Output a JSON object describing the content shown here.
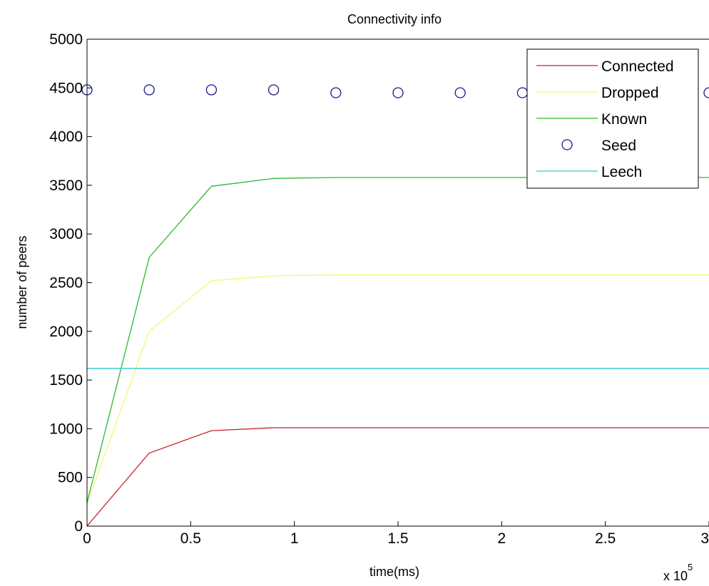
{
  "chart_data": {
    "type": "line",
    "title": "Connectivity info",
    "xlabel": "time(ms)",
    "ylabel": "number of peers",
    "x_multiplier_label": "x 10",
    "x_multiplier_exponent": "5",
    "xlim": [
      0,
      300000
    ],
    "ylim": [
      0,
      5000
    ],
    "xticks": [
      0,
      50000,
      100000,
      150000,
      200000,
      250000,
      300000
    ],
    "xtick_labels": [
      "0",
      "0.5",
      "1",
      "1.5",
      "2",
      "2.5",
      "3"
    ],
    "yticks": [
      0,
      500,
      1000,
      1500,
      2000,
      2500,
      3000,
      3500,
      4000,
      4500,
      5000
    ],
    "ytick_labels": [
      "0",
      "500",
      "1000",
      "1500",
      "2000",
      "2500",
      "3000",
      "3500",
      "4000",
      "4500",
      "5000"
    ],
    "grid": false,
    "legend_position": "top-right",
    "series": [
      {
        "name": "Connected",
        "color": "#c0262a",
        "style": "line",
        "x": [
          0,
          30000,
          60000,
          90000,
          120000,
          150000,
          180000,
          210000,
          240000,
          270000,
          300000
        ],
        "values": [
          0,
          750,
          980,
          1010,
          1010,
          1010,
          1010,
          1010,
          1010,
          1010,
          1010
        ]
      },
      {
        "name": "Dropped",
        "color": "#f5f573",
        "style": "line",
        "x": [
          0,
          30000,
          60000,
          90000,
          120000,
          150000,
          180000,
          210000,
          240000,
          270000,
          300000
        ],
        "values": [
          230,
          2000,
          2520,
          2570,
          2580,
          2580,
          2580,
          2580,
          2580,
          2580,
          2580
        ]
      },
      {
        "name": "Known",
        "color": "#2eb82e",
        "style": "line",
        "x": [
          0,
          30000,
          60000,
          90000,
          120000,
          150000,
          180000,
          210000,
          240000,
          270000,
          300000
        ],
        "values": [
          240,
          2760,
          3490,
          3570,
          3580,
          3580,
          3580,
          3580,
          3580,
          3580,
          3580
        ]
      },
      {
        "name": "Seed",
        "color": "#1a1a8c",
        "style": "marker-circle",
        "x": [
          0,
          30000,
          60000,
          90000,
          120000,
          150000,
          180000,
          210000,
          240000,
          270000,
          300000
        ],
        "values": [
          4480,
          4480,
          4480,
          4480,
          4450,
          4450,
          4450,
          4450,
          4450,
          4450,
          4450
        ]
      },
      {
        "name": "Leech",
        "color": "#33cccc",
        "style": "line",
        "x": [
          0,
          30000,
          60000,
          90000,
          120000,
          150000,
          180000,
          210000,
          240000,
          270000,
          300000
        ],
        "values": [
          1620,
          1620,
          1620,
          1620,
          1620,
          1620,
          1620,
          1620,
          1620,
          1620,
          1620
        ]
      }
    ]
  }
}
